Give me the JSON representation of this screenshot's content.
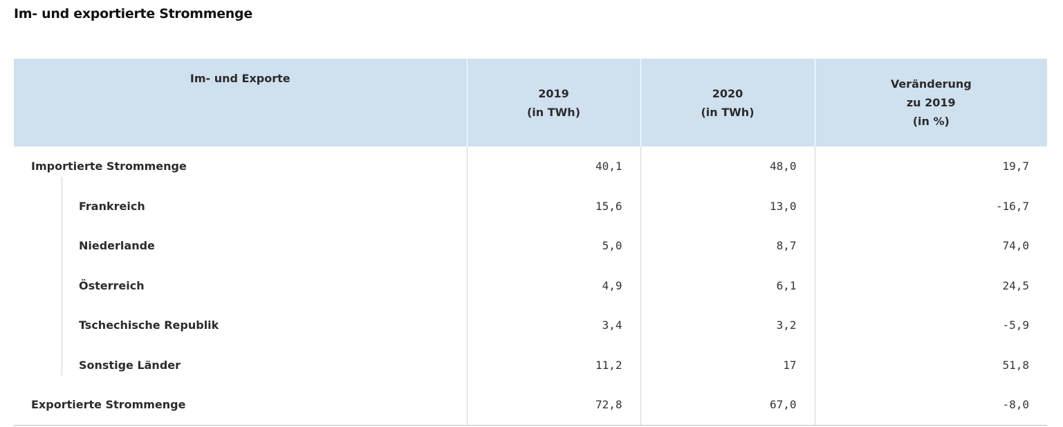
{
  "title": "Im- und exportierte Strommenge",
  "table": {
    "headers": [
      [
        "Im- und Exporte"
      ],
      [
        "2019",
        "(in TWh)"
      ],
      [
        "2020",
        "(in TWh)"
      ],
      [
        "Veränderung",
        "zu 2019",
        "(in %)"
      ]
    ],
    "rows": [
      {
        "label": "Importierte Strommenge",
        "level": 0,
        "v2019": "40,1",
        "v2020": "48,0",
        "change": "19,7"
      },
      {
        "label": "Frankreich",
        "level": 1,
        "v2019": "15,6",
        "v2020": "13,0",
        "change": "-16,7"
      },
      {
        "label": "Niederlande",
        "level": 1,
        "v2019": "5,0",
        "v2020": "8,7",
        "change": "74,0"
      },
      {
        "label": "Österreich",
        "level": 1,
        "v2019": "4,9",
        "v2020": "6,1",
        "change": "24,5"
      },
      {
        "label": "Tschechische Republik",
        "level": 1,
        "v2019": "3,4",
        "v2020": "3,2",
        "change": "-5,9"
      },
      {
        "label": "Sonstige Länder",
        "level": 1,
        "v2019": "11,2",
        "v2020": "17",
        "change": "51,8"
      },
      {
        "label": "Exportierte Strommenge",
        "level": 0,
        "v2019": "72,8",
        "v2020": "67,0",
        "change": "-8,0"
      }
    ]
  },
  "colors": {
    "header_background": "#cfe0ef",
    "text": "#2b2b2b",
    "grid_line": "#d4d4d4"
  }
}
